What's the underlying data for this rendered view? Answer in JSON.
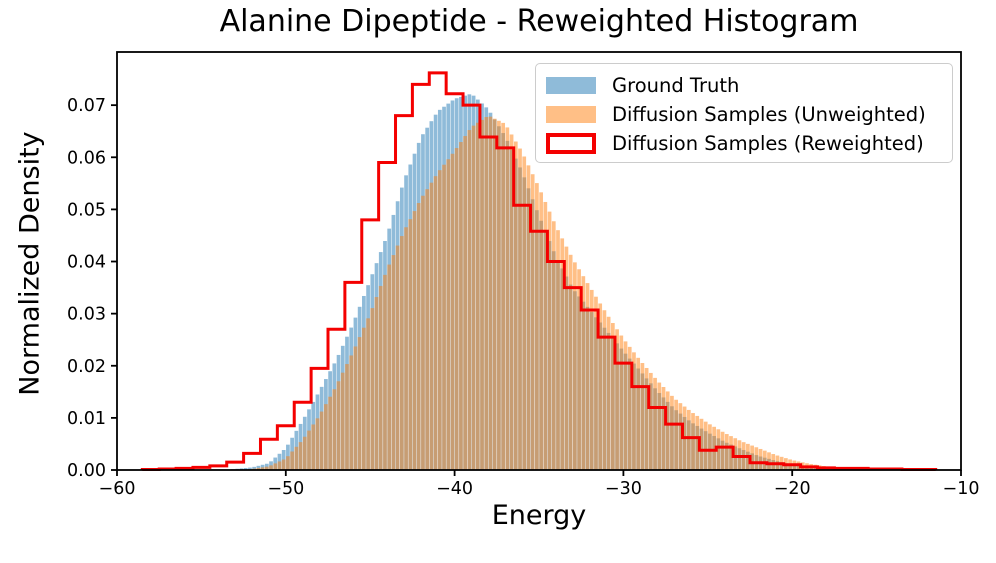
{
  "title": "Alanine Dipeptide - Reweighted Histogram",
  "xlabel": "Energy",
  "ylabel": "Normalized Density",
  "legend": {
    "items": [
      {
        "label": "Ground Truth",
        "swatch": "blue-fill-swatch",
        "color": "#8fbbd9"
      },
      {
        "label": "Diffusion Samples (Unweighted)",
        "swatch": "orange-fill-swatch",
        "color": "#ffbf86"
      },
      {
        "label": "Diffusion Samples (Reweighted)",
        "swatch": "red-outline-swatch",
        "color": "#f40000"
      }
    ]
  },
  "axes": {
    "xlim": [
      -60,
      -10
    ],
    "ylim": [
      0,
      0.0802
    ],
    "x_ticks": [
      -60,
      -50,
      -40,
      -30,
      -20,
      -10
    ],
    "x_tick_labels": [
      "−60",
      "−50",
      "−40",
      "−30",
      "−20",
      "−10"
    ],
    "y_ticks": [
      0.0,
      0.01,
      0.02,
      0.03,
      0.04,
      0.05,
      0.06,
      0.07
    ],
    "y_tick_labels": [
      "0.00",
      "0.01",
      "0.02",
      "0.03",
      "0.04",
      "0.05",
      "0.06",
      "0.07"
    ],
    "grid": false,
    "legend_position": "upper right"
  },
  "chart_data": {
    "type": "bar",
    "subtype": "overlaid-histograms",
    "title": "Alanine Dipeptide - Reweighted Histogram",
    "xlabel": "Energy",
    "ylabel": "Normalized Density",
    "xlim": [
      -60,
      -10
    ],
    "ylim": [
      0,
      0.0802
    ],
    "series": [
      {
        "name": "Ground Truth",
        "style": "filled-fine-bins",
        "fill_rgba": [
          31,
          119,
          180,
          0.5
        ],
        "bin_width": 0.25,
        "x": [
          -53,
          -52,
          -51,
          -50,
          -49,
          -48,
          -47,
          -46,
          -45,
          -44,
          -43,
          -42,
          -41,
          -40,
          -39,
          -38,
          -37,
          -36,
          -35,
          -34,
          -33,
          -32,
          -31,
          -30,
          -29,
          -28,
          -27,
          -26,
          -25,
          -24,
          -23,
          -22,
          -21,
          -20,
          -19,
          -18,
          -17
        ],
        "values": [
          0.0002,
          0.0005,
          0.0013,
          0.0042,
          0.0095,
          0.0152,
          0.0212,
          0.0282,
          0.0365,
          0.045,
          0.0555,
          0.0638,
          0.0688,
          0.0712,
          0.0722,
          0.0692,
          0.064,
          0.0572,
          0.0488,
          0.041,
          0.0348,
          0.0308,
          0.0268,
          0.0228,
          0.019,
          0.0152,
          0.0118,
          0.0092,
          0.0072,
          0.0054,
          0.004,
          0.0027,
          0.0018,
          0.001,
          0.0005,
          0.0002,
          0.0001
        ]
      },
      {
        "name": "Diffusion Samples (Unweighted)",
        "style": "filled-fine-bins",
        "fill_rgba": [
          255,
          127,
          14,
          0.5
        ],
        "bin_width": 0.25,
        "x": [
          -52,
          -51,
          -50,
          -49,
          -48,
          -47,
          -46,
          -45,
          -44,
          -43,
          -42,
          -41,
          -40,
          -39,
          -38,
          -37,
          -36,
          -35,
          -34,
          -33,
          -32,
          -31,
          -30,
          -29,
          -28,
          -27,
          -26,
          -25,
          -24,
          -23,
          -22,
          -21,
          -20,
          -19,
          -18,
          -17,
          -16,
          -15,
          -14,
          -13,
          -12
        ],
        "values": [
          0.0002,
          0.0007,
          0.0022,
          0.0058,
          0.0105,
          0.0162,
          0.0228,
          0.03,
          0.0385,
          0.0458,
          0.052,
          0.057,
          0.0612,
          0.0658,
          0.068,
          0.0664,
          0.061,
          0.0542,
          0.0468,
          0.0405,
          0.0352,
          0.03,
          0.0252,
          0.021,
          0.0172,
          0.0138,
          0.0112,
          0.009,
          0.0071,
          0.0055,
          0.0042,
          0.0029,
          0.0019,
          0.0012,
          0.0007,
          0.0005,
          0.0003,
          0.0002,
          0.0002,
          0.0001,
          0.0001
        ]
      },
      {
        "name": "Diffusion Samples (Reweighted)",
        "style": "step-outline",
        "line_color": "#f40000",
        "line_width": 3,
        "bin_width": 1,
        "x": [
          -58,
          -57,
          -56,
          -55,
          -54,
          -53,
          -52,
          -51,
          -50,
          -49,
          -48,
          -47,
          -46,
          -45,
          -44,
          -43,
          -42,
          -41,
          -40,
          -39,
          -38,
          -37,
          -36,
          -35,
          -34,
          -33,
          -32,
          -31,
          -30,
          -29,
          -28,
          -27,
          -26,
          -25,
          -24,
          -23,
          -22,
          -21,
          -20,
          -19,
          -18,
          -17,
          -16,
          -15,
          -14,
          -13,
          -12
        ],
        "values": [
          0.0001,
          0.0002,
          0.0003,
          0.0005,
          0.0008,
          0.0015,
          0.0032,
          0.0059,
          0.0085,
          0.013,
          0.0195,
          0.027,
          0.036,
          0.048,
          0.059,
          0.068,
          0.074,
          0.0762,
          0.0722,
          0.07,
          0.0639,
          0.0618,
          0.0508,
          0.0458,
          0.04,
          0.035,
          0.0307,
          0.0255,
          0.0205,
          0.016,
          0.012,
          0.0088,
          0.0062,
          0.0038,
          0.0044,
          0.0026,
          0.0014,
          0.0012,
          0.001,
          0.0006,
          0.0004,
          0.0003,
          0.0003,
          0.0002,
          0.0002,
          0.0001,
          0.0001
        ]
      }
    ]
  }
}
